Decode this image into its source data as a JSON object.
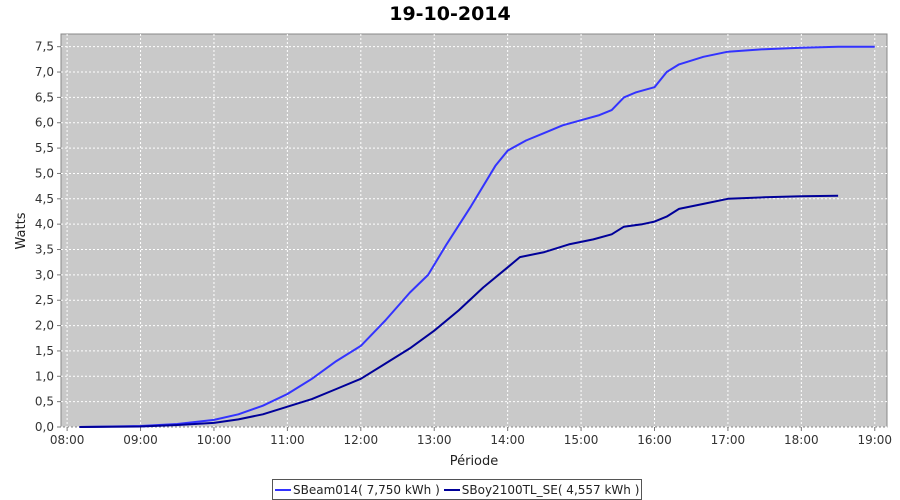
{
  "chart_data": {
    "type": "line",
    "title": "19-10-2014",
    "xlabel": "Période",
    "ylabel": "Watts",
    "xlim": [
      "08:00",
      "19:00"
    ],
    "ylim": [
      0,
      7.75
    ],
    "x_ticks": [
      "08:00",
      "09:00",
      "10:00",
      "11:00",
      "12:00",
      "13:00",
      "14:00",
      "15:00",
      "16:00",
      "17:00",
      "18:00",
      "19:00"
    ],
    "y_ticks": [
      "0,0",
      "0,5",
      "1,0",
      "1,5",
      "2,0",
      "2,5",
      "3,0",
      "3,5",
      "4,0",
      "4,5",
      "5,0",
      "5,5",
      "6,0",
      "6,5",
      "7,0",
      "7,5"
    ],
    "grid": true,
    "legend_position": "bottom",
    "series": [
      {
        "name": "SBeam014( 7,750 kWh )",
        "color": "#3333ff",
        "x": [
          "08:10",
          "09:00",
          "09:30",
          "10:00",
          "10:20",
          "10:40",
          "11:00",
          "11:20",
          "11:40",
          "12:00",
          "12:20",
          "12:40",
          "12:55",
          "13:10",
          "13:30",
          "13:50",
          "14:00",
          "14:15",
          "14:30",
          "14:45",
          "15:00",
          "15:15",
          "15:25",
          "15:35",
          "15:45",
          "16:00",
          "16:10",
          "16:20",
          "16:40",
          "17:00",
          "17:30",
          "18:00",
          "18:30",
          "19:00"
        ],
        "y": [
          0.0,
          0.02,
          0.06,
          0.14,
          0.25,
          0.42,
          0.65,
          0.95,
          1.3,
          1.6,
          2.1,
          2.65,
          3.0,
          3.6,
          4.35,
          5.15,
          5.45,
          5.65,
          5.8,
          5.95,
          6.05,
          6.15,
          6.25,
          6.5,
          6.6,
          6.7,
          7.0,
          7.15,
          7.3,
          7.4,
          7.45,
          7.48,
          7.5,
          7.5
        ]
      },
      {
        "name": "SBoy2100TL_SE( 4,557 kWh )",
        "color": "#000099",
        "x": [
          "08:10",
          "09:00",
          "09:30",
          "10:00",
          "10:20",
          "10:40",
          "11:00",
          "11:20",
          "11:40",
          "12:00",
          "12:20",
          "12:40",
          "13:00",
          "13:20",
          "13:40",
          "14:00",
          "14:10",
          "14:30",
          "14:50",
          "15:10",
          "15:25",
          "15:35",
          "15:50",
          "16:00",
          "16:10",
          "16:20",
          "16:40",
          "17:00",
          "17:30",
          "18:00",
          "18:30"
        ],
        "y": [
          0.0,
          0.01,
          0.04,
          0.08,
          0.15,
          0.25,
          0.4,
          0.55,
          0.75,
          0.95,
          1.25,
          1.55,
          1.9,
          2.3,
          2.75,
          3.15,
          3.35,
          3.45,
          3.6,
          3.7,
          3.8,
          3.95,
          4.0,
          4.05,
          4.15,
          4.3,
          4.4,
          4.5,
          4.53,
          4.55,
          4.56
        ]
      }
    ]
  }
}
